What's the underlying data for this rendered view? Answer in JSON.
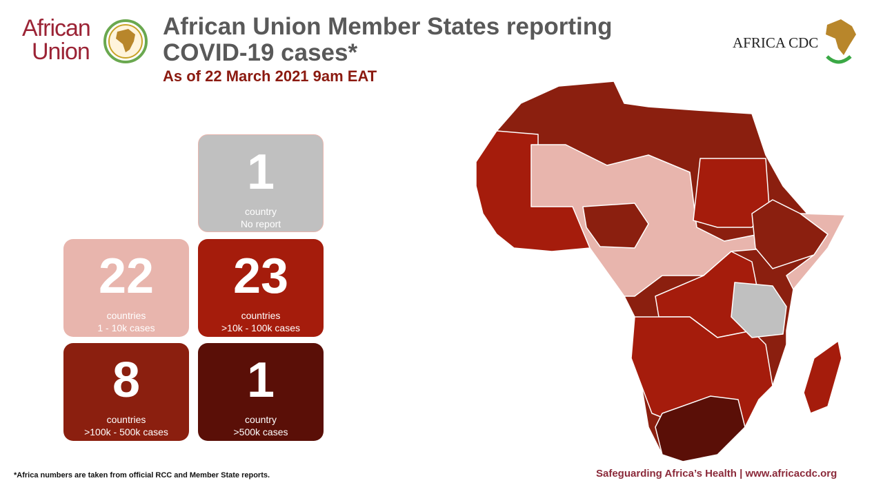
{
  "header": {
    "title": "African Union Member States reporting COVID-19 cases*",
    "subtitle": "As of 22 March 2021 9am EAT"
  },
  "logos": {
    "au": [
      "African",
      "Union"
    ],
    "cdc": "AFRICA CDC"
  },
  "tiles": [
    {
      "count": "1",
      "unit": "country",
      "label": "No report",
      "color": "#c0c0c0"
    },
    {
      "count": "22",
      "unit": "countries",
      "label": "1 - 10k cases",
      "color": "#e8b5ad"
    },
    {
      "count": "23",
      "unit": "countries",
      "label": ">10k - 100k cases",
      "color": "#a51c0c"
    },
    {
      "count": "8",
      "unit": "countries",
      "label": ">100k - 500k cases",
      "color": "#8b1f0f"
    },
    {
      "count": "1",
      "unit": "country",
      "label": ">500k cases",
      "color": "#5a0f07"
    }
  ],
  "footer": {
    "note": "*Africa numbers are taken from official RCC and Member State reports.",
    "tagline": "Safeguarding Africa’s Health | www.africacdc.org"
  }
}
